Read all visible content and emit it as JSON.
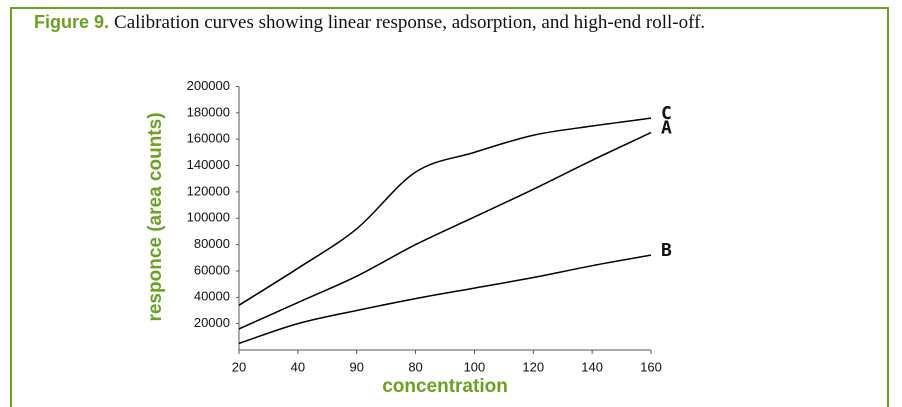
{
  "figure_label": "Figure 9.",
  "caption": "Calibration curves showing linear response, adsorption, and high-end roll-off.",
  "chart_data": {
    "type": "line",
    "xlabel": "concentration",
    "ylabel": "responce (area counts)",
    "categories": [
      "20",
      "40",
      "90",
      "80",
      "100",
      "120",
      "140",
      "160"
    ],
    "ylim": [
      0,
      200000
    ],
    "yticks": [
      20000,
      40000,
      60000,
      80000,
      100000,
      120000,
      140000,
      160000,
      180000,
      200000
    ],
    "series": [
      {
        "name": "C",
        "color": "#000000",
        "values": [
          34000,
          62000,
          92000,
          135000,
          150000,
          163000,
          170000,
          176000
        ]
      },
      {
        "name": "A",
        "color": "#000000",
        "values": [
          16000,
          36000,
          56000,
          80000,
          101000,
          122000,
          144000,
          165000
        ]
      },
      {
        "name": "B",
        "color": "#000000",
        "values": [
          5000,
          20000,
          30000,
          39000,
          47000,
          55000,
          64000,
          72000
        ]
      }
    ]
  }
}
